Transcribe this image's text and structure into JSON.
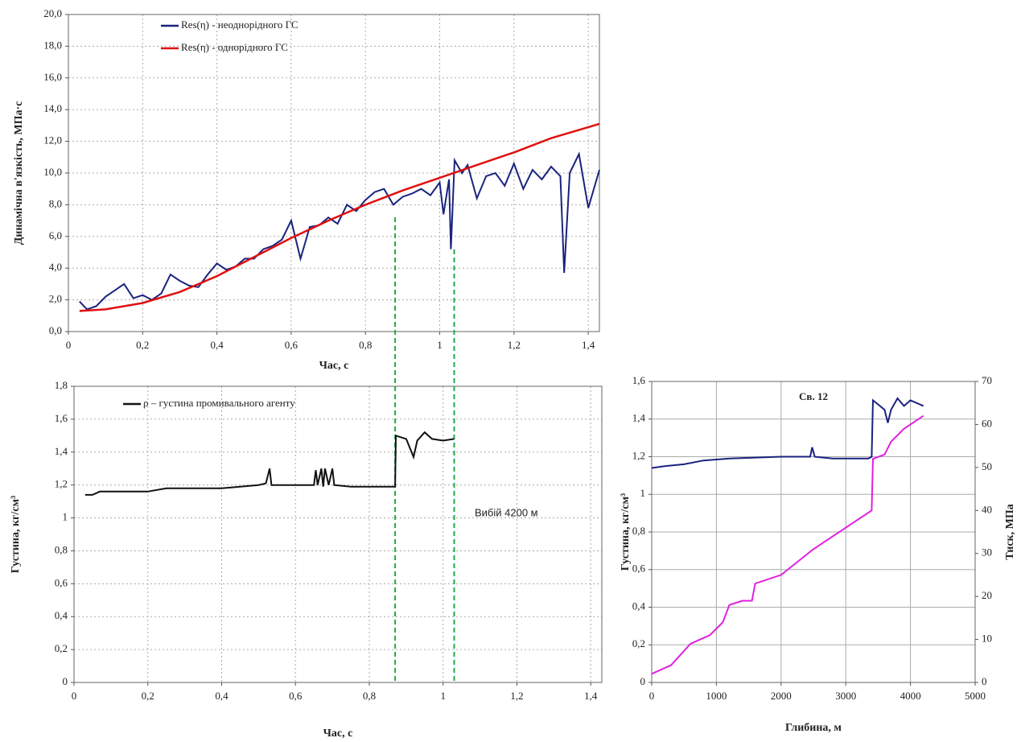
{
  "chart_data": [
    {
      "type": "line",
      "y_label": "Динамічна в'язкість, МПа·с",
      "x_label": "Час, с",
      "xlim": [
        0,
        1.43
      ],
      "ylim": [
        0,
        20
      ],
      "xticks": [
        0,
        {
          "value": 0.2,
          "label": "0,2"
        },
        {
          "value": 0.4,
          "label": "0,4"
        },
        {
          "value": 0.6,
          "label": "0,6"
        },
        {
          "value": 0.8,
          "label": "0,8"
        },
        1,
        {
          "value": 1.2,
          "label": "1,2"
        },
        {
          "value": 1.4,
          "label": "1,4"
        }
      ],
      "yticks": [
        {
          "value": 0,
          "label": "0,0"
        },
        {
          "value": 2,
          "label": "2,0"
        },
        {
          "value": 4,
          "label": "4,0"
        },
        {
          "value": 6,
          "label": "6,0"
        },
        {
          "value": 8,
          "label": "8,0"
        },
        {
          "value": 10,
          "label": "10,0"
        },
        {
          "value": 12,
          "label": "12,0"
        },
        {
          "value": 14,
          "label": "14,0"
        },
        {
          "value": 16,
          "label": "16,0"
        },
        {
          "value": 18,
          "label": "18,0"
        },
        {
          "value": 20,
          "label": "20,0"
        }
      ],
      "grid": true,
      "series": [
        {
          "name": "Res(η) - неоднорідного ГС",
          "color": "#1a237e",
          "x": [
            0.03,
            0.05,
            0.075,
            0.1,
            0.125,
            0.15,
            0.175,
            0.2,
            0.225,
            0.25,
            0.275,
            0.3,
            0.325,
            0.35,
            0.375,
            0.4,
            0.425,
            0.45,
            0.475,
            0.5,
            0.525,
            0.55,
            0.575,
            0.6,
            0.625,
            0.65,
            0.675,
            0.7,
            0.725,
            0.75,
            0.775,
            0.8,
            0.825,
            0.85,
            0.875,
            0.9,
            0.925,
            0.95,
            0.975,
            1.0,
            1.01,
            1.025,
            1.03,
            1.04,
            1.06,
            1.075,
            1.1,
            1.125,
            1.15,
            1.175,
            1.2,
            1.225,
            1.25,
            1.275,
            1.3,
            1.325,
            1.335,
            1.35,
            1.375,
            1.4,
            1.43
          ],
          "values": [
            1.9,
            1.4,
            1.6,
            2.2,
            2.6,
            3.0,
            2.1,
            2.3,
            2.0,
            2.4,
            3.6,
            3.2,
            2.9,
            2.8,
            3.6,
            4.3,
            3.9,
            4.1,
            4.6,
            4.6,
            5.2,
            5.4,
            5.8,
            7.0,
            4.6,
            6.6,
            6.7,
            7.2,
            6.8,
            8.0,
            7.6,
            8.3,
            8.8,
            9.0,
            8.0,
            8.5,
            8.7,
            9.0,
            8.6,
            9.4,
            7.4,
            9.6,
            5.2,
            10.8,
            10.0,
            10.5,
            8.4,
            9.8,
            10.0,
            9.2,
            10.6,
            9.0,
            10.2,
            9.6,
            10.4,
            9.8,
            3.7,
            10.0,
            11.2,
            7.8,
            10.2
          ]
        },
        {
          "name": "Res(η) - однорідного ГС",
          "color": "#e01010",
          "x": [
            0.03,
            0.1,
            0.2,
            0.3,
            0.4,
            0.5,
            0.6,
            0.7,
            0.8,
            0.9,
            1.0,
            1.1,
            1.2,
            1.3,
            1.43
          ],
          "values": [
            1.3,
            1.4,
            1.8,
            2.5,
            3.5,
            4.7,
            5.9,
            7.0,
            8.0,
            8.9,
            9.7,
            10.5,
            11.3,
            12.2,
            13.1
          ]
        }
      ]
    },
    {
      "type": "line",
      "y_label": "Густина, кг/см³",
      "x_label": "Час, с",
      "annotation": "Вибій 4200 м",
      "xlim": [
        0,
        1.43
      ],
      "ylim": [
        0,
        1.8
      ],
      "xticks": [
        0,
        {
          "value": 0.2,
          "label": "0,2"
        },
        {
          "value": 0.4,
          "label": "0,4"
        },
        {
          "value": 0.6,
          "label": "0,6"
        },
        {
          "value": 0.8,
          "label": "0,8"
        },
        1,
        {
          "value": 1.2,
          "label": "1,2"
        },
        {
          "value": 1.4,
          "label": "1,4"
        }
      ],
      "yticks": [
        0,
        {
          "value": 0.2,
          "label": "0,2"
        },
        {
          "value": 0.4,
          "label": "0,4"
        },
        {
          "value": 0.6,
          "label": "0,6"
        },
        {
          "value": 0.8,
          "label": "0,8"
        },
        1,
        {
          "value": 1.2,
          "label": "1,2"
        },
        {
          "value": 1.4,
          "label": "1,4"
        },
        {
          "value": 1.6,
          "label": "1,6"
        },
        {
          "value": 1.8,
          "label": "1,8"
        }
      ],
      "grid": true,
      "vlines": [
        0.87,
        1.03
      ],
      "vline_color": "#22aa44",
      "series": [
        {
          "name": "ρ – густина промивального агенту",
          "color": "#111111",
          "x": [
            0.03,
            0.05,
            0.07,
            0.1,
            0.2,
            0.25,
            0.4,
            0.45,
            0.5,
            0.52,
            0.53,
            0.535,
            0.6,
            0.65,
            0.655,
            0.66,
            0.67,
            0.675,
            0.68,
            0.69,
            0.7,
            0.705,
            0.75,
            0.87,
            0.872,
            0.9,
            0.92,
            0.93,
            0.95,
            0.97,
            1.0,
            1.03
          ],
          "values": [
            1.14,
            1.14,
            1.16,
            1.16,
            1.16,
            1.18,
            1.18,
            1.19,
            1.2,
            1.21,
            1.3,
            1.2,
            1.2,
            1.2,
            1.29,
            1.2,
            1.3,
            1.19,
            1.3,
            1.2,
            1.3,
            1.2,
            1.19,
            1.19,
            1.5,
            1.48,
            1.37,
            1.47,
            1.52,
            1.48,
            1.47,
            1.48
          ]
        }
      ]
    },
    {
      "type": "line",
      "title": "Св. 12",
      "y_label": "Густина, кг/см³",
      "y2_label": "Тиск, МПа",
      "x_label": "Глибина, м",
      "xlim": [
        0,
        5000
      ],
      "ylim": [
        0,
        1.6
      ],
      "y2lim": [
        0,
        70
      ],
      "xticks": [
        0,
        1000,
        2000,
        3000,
        4000,
        5000
      ],
      "yticks": [
        0,
        {
          "value": 0.2,
          "label": "0,2"
        },
        {
          "value": 0.4,
          "label": "0,4"
        },
        {
          "value": 0.6,
          "label": "0,6"
        },
        {
          "value": 0.8,
          "label": "0,8"
        },
        1,
        {
          "value": 1.2,
          "label": "1,2"
        },
        {
          "value": 1.4,
          "label": "1,4"
        },
        {
          "value": 1.6,
          "label": "1,6"
        }
      ],
      "y2ticks": [
        0,
        10,
        20,
        30,
        40,
        50,
        60,
        70
      ],
      "grid": true,
      "series": [
        {
          "color": "#1a237e",
          "x": [
            0,
            200,
            500,
            800,
            1200,
            2000,
            2450,
            2480,
            2520,
            2800,
            3350,
            3400,
            3420,
            3600,
            3650,
            3700,
            3800,
            3900,
            4000,
            4200
          ],
          "values": [
            1.14,
            1.15,
            1.16,
            1.18,
            1.19,
            1.2,
            1.2,
            1.25,
            1.2,
            1.19,
            1.19,
            1.2,
            1.5,
            1.45,
            1.38,
            1.45,
            1.51,
            1.47,
            1.5,
            1.47
          ]
        },
        {
          "color": "#e020e0",
          "axis": "y2",
          "x": [
            0,
            300,
            600,
            900,
            1100,
            1200,
            1400,
            1550,
            1600,
            2000,
            2500,
            3000,
            3400,
            3420,
            3600,
            3700,
            3900,
            4200
          ],
          "values": [
            2,
            4,
            9,
            11,
            14,
            18,
            19,
            19,
            23,
            25,
            31,
            36,
            40,
            52,
            53,
            56,
            59,
            62
          ]
        }
      ]
    }
  ]
}
